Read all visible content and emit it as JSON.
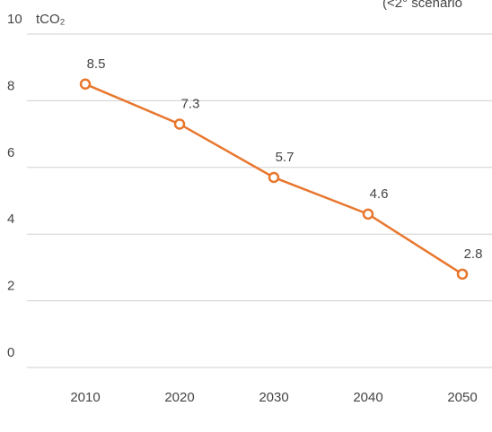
{
  "chart_data": {
    "type": "line",
    "subtitle": "(<2° scenario",
    "unit": "tCO₂",
    "categories": [
      "2010",
      "2020",
      "2030",
      "2040",
      "2050"
    ],
    "series": [
      {
        "name": null,
        "color": "#e8772e",
        "values": [
          8.5,
          7.3,
          5.7,
          4.6,
          2.8
        ]
      }
    ],
    "ylim": [
      0,
      10
    ],
    "yticks": [
      0,
      2,
      4,
      6,
      8,
      10
    ],
    "grid": true
  }
}
